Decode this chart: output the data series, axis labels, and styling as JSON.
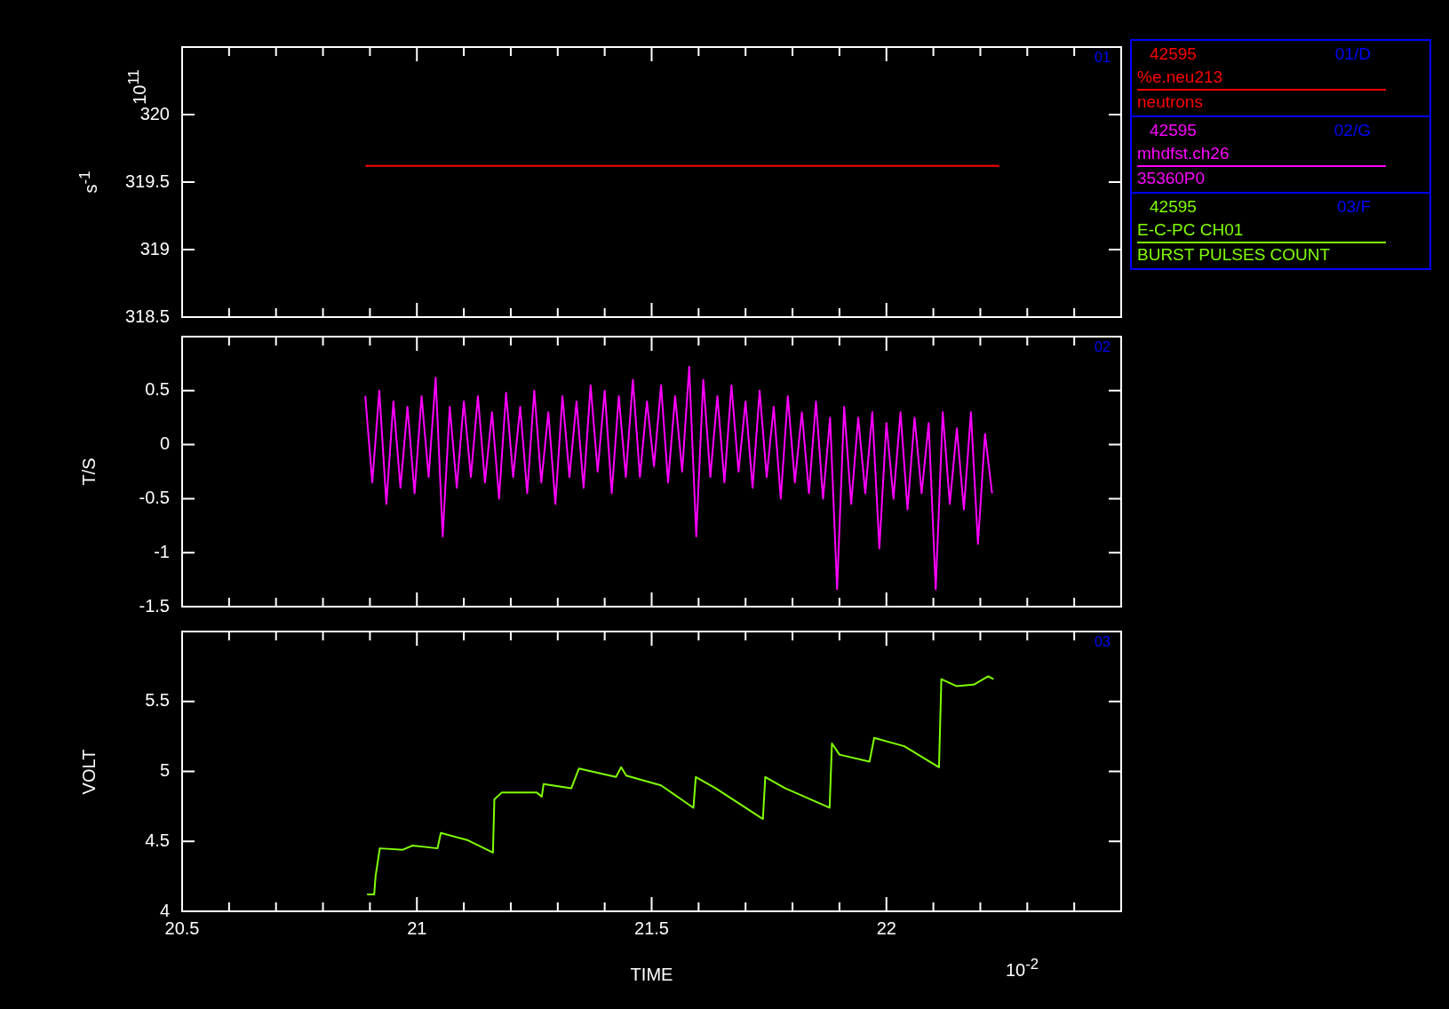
{
  "chart_data": [
    {
      "type": "line",
      "ylabel": "s$^{-1}$",
      "legend_title": "42595",
      "legend": "top right",
      "grid": false,
      "marker": "none",
      "line_style": "solid",
      "tick_labels": "y",
      "annotations": [
        "01/D",
        "neutrons",
        "01",
        "10$^{11}$"
      ],
      "xlim": [
        20.5,
        22.5
      ],
      "xticks": [
        20.5,
        {
          "value": 20.6,
          "label": null
        },
        {
          "value": 20.7,
          "label": null
        },
        {
          "value": 20.8,
          "label": null
        },
        {
          "value": 20.9,
          "label": null
        },
        21,
        {
          "value": 21.1,
          "label": null
        },
        {
          "value": 21.2,
          "label": null
        },
        {
          "value": 21.3,
          "label": null
        },
        {
          "value": 21.4,
          "label": null
        },
        21.5,
        {
          "value": 21.6,
          "label": null
        },
        {
          "value": 21.7,
          "label": null
        },
        {
          "value": 21.8,
          "label": null
        },
        {
          "value": 21.9,
          "label": null
        },
        22,
        {
          "value": 22.1,
          "label": null
        },
        {
          "value": 22.2,
          "label": null
        },
        {
          "value": 22.3,
          "label": null
        },
        {
          "value": 22.4,
          "label": null
        },
        {
          "value": 22.5,
          "label": null
        }
      ],
      "ylim": [
        318.5,
        320.5
      ],
      "yticks": [
        318.5,
        319,
        319.5,
        320
      ],
      "series": [
        {
          "name": "%e.neu213",
          "color": "#ff0000",
          "x": [
            20.89,
            22.24
          ],
          "values": [
            319.62,
            319.62
          ]
        }
      ]
    },
    {
      "type": "line",
      "ylabel": "T/S",
      "legend_title": "42595",
      "legend": "top right",
      "grid": false,
      "marker": "none",
      "line_style": "solid",
      "tick_labels": "y",
      "annotations": [
        "02/G",
        "35360P0",
        "02"
      ],
      "xlim": [
        20.5,
        22.5
      ],
      "xticks": [
        20.5,
        {
          "value": 20.6,
          "label": null
        },
        {
          "value": 20.7,
          "label": null
        },
        {
          "value": 20.8,
          "label": null
        },
        {
          "value": 20.9,
          "label": null
        },
        21,
        {
          "value": 21.1,
          "label": null
        },
        {
          "value": 21.2,
          "label": null
        },
        {
          "value": 21.3,
          "label": null
        },
        {
          "value": 21.4,
          "label": null
        },
        21.5,
        {
          "value": 21.6,
          "label": null
        },
        {
          "value": 21.7,
          "label": null
        },
        {
          "value": 21.8,
          "label": null
        },
        {
          "value": 21.9,
          "label": null
        },
        22,
        {
          "value": 22.1,
          "label": null
        },
        {
          "value": 22.2,
          "label": null
        },
        {
          "value": 22.3,
          "label": null
        },
        {
          "value": 22.4,
          "label": null
        },
        {
          "value": 22.5,
          "label": null
        }
      ],
      "ylim": [
        -1.5,
        1
      ],
      "yticks": [
        -1.5,
        -1,
        -0.5,
        0,
        0.5
      ],
      "series": [
        {
          "name": "mhdfst.ch26",
          "color": "#ff00ff",
          "x": [
            20.89,
            20.905,
            20.92,
            20.935,
            20.95,
            20.965,
            20.98,
            20.995,
            21.01,
            21.025,
            21.04,
            21.055,
            21.07,
            21.085,
            21.1,
            21.115,
            21.13,
            21.145,
            21.16,
            21.175,
            21.19,
            21.205,
            21.22,
            21.235,
            21.25,
            21.265,
            21.28,
            21.295,
            21.31,
            21.325,
            21.34,
            21.355,
            21.37,
            21.385,
            21.4,
            21.415,
            21.43,
            21.445,
            21.46,
            21.475,
            21.49,
            21.505,
            21.52,
            21.535,
            21.55,
            21.565,
            21.58,
            21.595,
            21.61,
            21.625,
            21.64,
            21.655,
            21.67,
            21.685,
            21.7,
            21.715,
            21.73,
            21.745,
            21.76,
            21.775,
            21.79,
            21.805,
            21.82,
            21.835,
            21.85,
            21.865,
            21.88,
            21.895,
            21.91,
            21.925,
            21.94,
            21.955,
            21.97,
            21.985,
            22,
            22.015,
            22.03,
            22.045,
            22.06,
            22.075,
            22.09,
            22.105,
            22.12,
            22.135,
            22.15,
            22.165,
            22.18,
            22.195,
            22.21,
            22.225
          ],
          "values": [
            0.45,
            -0.35,
            0.5,
            -0.55,
            0.4,
            -0.4,
            0.35,
            -0.45,
            0.45,
            -0.3,
            0.62,
            -0.85,
            0.35,
            -0.4,
            0.4,
            -0.3,
            0.45,
            -0.35,
            0.3,
            -0.5,
            0.48,
            -0.3,
            0.35,
            -0.45,
            0.5,
            -0.35,
            0.3,
            -0.55,
            0.45,
            -0.3,
            0.4,
            -0.4,
            0.55,
            -0.25,
            0.5,
            -0.45,
            0.45,
            -0.3,
            0.6,
            -0.3,
            0.4,
            -0.2,
            0.55,
            -0.35,
            0.45,
            -0.25,
            0.72,
            -0.85,
            0.6,
            -0.3,
            0.45,
            -0.35,
            0.55,
            -0.25,
            0.4,
            -0.4,
            0.5,
            -0.3,
            0.35,
            -0.5,
            0.45,
            -0.35,
            0.3,
            -0.45,
            0.4,
            -0.5,
            0.25,
            -1.34,
            0.35,
            -0.55,
            0.25,
            -0.45,
            0.3,
            -0.96,
            0.2,
            -0.5,
            0.3,
            -0.6,
            0.25,
            -0.45,
            0.2,
            -1.34,
            0.3,
            -0.55,
            0.15,
            -0.6,
            0.3,
            -0.92,
            0.1,
            -0.45
          ]
        }
      ]
    },
    {
      "type": "line",
      "xlabel": "TIME",
      "ylabel": "VOLT",
      "legend_title": "42595",
      "legend": "top right",
      "grid": false,
      "marker": "none",
      "line_style": "solid",
      "annotations": [
        "03/F",
        "BURST PULSES COUNT",
        "03",
        "10$^{-2}$"
      ],
      "xlim": [
        20.5,
        22.5
      ],
      "xticks": [
        20.5,
        {
          "value": 20.6,
          "label": null
        },
        {
          "value": 20.7,
          "label": null
        },
        {
          "value": 20.8,
          "label": null
        },
        {
          "value": 20.9,
          "label": null
        },
        21,
        {
          "value": 21.1,
          "label": null
        },
        {
          "value": 21.2,
          "label": null
        },
        {
          "value": 21.3,
          "label": null
        },
        {
          "value": 21.4,
          "label": null
        },
        21.5,
        {
          "value": 21.6,
          "label": null
        },
        {
          "value": 21.7,
          "label": null
        },
        {
          "value": 21.8,
          "label": null
        },
        {
          "value": 21.9,
          "label": null
        },
        22,
        {
          "value": 22.1,
          "label": null
        },
        {
          "value": 22.2,
          "label": null
        },
        {
          "value": 22.3,
          "label": null
        },
        {
          "value": 22.4,
          "label": null
        },
        {
          "value": 22.5,
          "label": null
        }
      ],
      "ylim": [
        4,
        6
      ],
      "yticks": [
        4,
        4.5,
        5,
        5.5
      ],
      "series": [
        {
          "name": "E-C-PC CH01",
          "color": "#80ff00",
          "x": [
            20.894,
            20.909,
            20.912,
            20.921,
            20.97,
            20.991,
            21.044,
            21.051,
            21.107,
            21.162,
            21.165,
            21.181,
            21.255,
            21.266,
            21.27,
            21.329,
            21.345,
            21.424,
            21.435,
            21.446,
            21.52,
            21.589,
            21.594,
            21.636,
            21.737,
            21.742,
            21.784,
            21.879,
            21.884,
            21.9,
            21.964,
            21.974,
            22.038,
            22.112,
            22.117,
            22.149,
            22.186,
            22.217,
            22.228
          ],
          "values": [
            4.12,
            4.12,
            4.25,
            4.45,
            4.44,
            4.47,
            4.45,
            4.56,
            4.51,
            4.42,
            4.8,
            4.85,
            4.85,
            4.82,
            4.91,
            4.88,
            5.02,
            4.96,
            5.03,
            4.97,
            4.9,
            4.74,
            4.96,
            4.88,
            4.66,
            4.96,
            4.88,
            4.74,
            5.2,
            5.12,
            5.07,
            5.24,
            5.18,
            5.03,
            5.66,
            5.61,
            5.62,
            5.68,
            5.66
          ]
        }
      ]
    }
  ]
}
